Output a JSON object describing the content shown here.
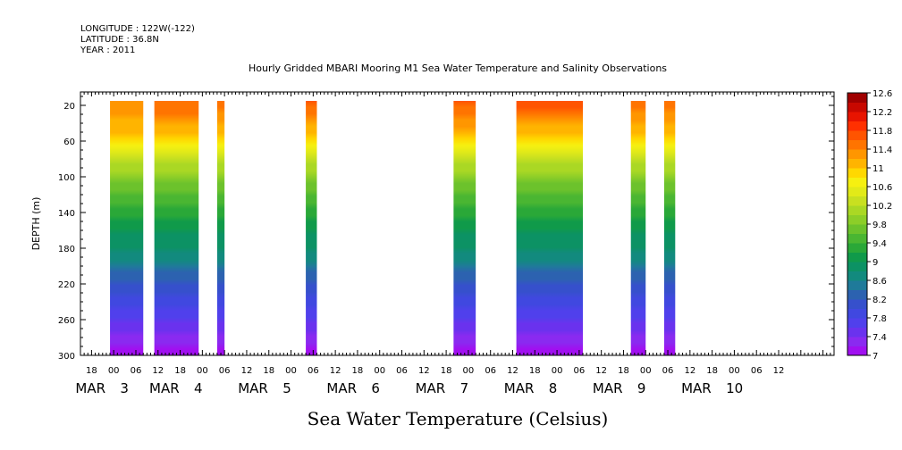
{
  "header": {
    "longitude": "LONGITUDE : 122W(-122)",
    "latitude": "LATITUDE : 36.8N",
    "year": "YEAR : 2011"
  },
  "chart_data": {
    "type": "heatmap",
    "title": "Hourly Gridded MBARI Mooring M1 Sea Water Temperature and Salinity Observations",
    "xlabel": "Sea Water Temperature (Celsius)",
    "ylabel": "DEPTH (m)",
    "xlim_hours": [
      -9,
      195
    ],
    "ylim": [
      300,
      5
    ],
    "y_ticks": [
      20,
      60,
      100,
      140,
      180,
      220,
      260,
      300
    ],
    "x_hour_ticks": [
      {
        "h": -6,
        "label": "18"
      },
      {
        "h": 0,
        "label": "00"
      },
      {
        "h": 6,
        "label": "06"
      },
      {
        "h": 12,
        "label": "12"
      },
      {
        "h": 18,
        "label": "18"
      },
      {
        "h": 24,
        "label": "00"
      },
      {
        "h": 30,
        "label": "06"
      },
      {
        "h": 36,
        "label": "12"
      },
      {
        "h": 42,
        "label": "18"
      },
      {
        "h": 48,
        "label": "00"
      },
      {
        "h": 54,
        "label": "06"
      },
      {
        "h": 60,
        "label": "12"
      },
      {
        "h": 66,
        "label": "18"
      },
      {
        "h": 72,
        "label": "00"
      },
      {
        "h": 78,
        "label": "06"
      },
      {
        "h": 84,
        "label": "12"
      },
      {
        "h": 90,
        "label": "18"
      },
      {
        "h": 96,
        "label": "00"
      },
      {
        "h": 102,
        "label": "06"
      },
      {
        "h": 108,
        "label": "12"
      },
      {
        "h": 114,
        "label": "18"
      },
      {
        "h": 120,
        "label": "00"
      },
      {
        "h": 126,
        "label": "06"
      },
      {
        "h": 132,
        "label": "12"
      },
      {
        "h": 138,
        "label": "18"
      },
      {
        "h": 144,
        "label": "00"
      },
      {
        "h": 150,
        "label": "06"
      },
      {
        "h": 156,
        "label": "12"
      },
      {
        "h": 162,
        "label": "18"
      },
      {
        "h": 168,
        "label": "00"
      },
      {
        "h": 174,
        "label": "06"
      },
      {
        "h": 180,
        "label": "12"
      }
    ],
    "day_labels": [
      {
        "h": -6,
        "month": "MAR",
        "day": "3"
      },
      {
        "h": 14,
        "month": "MAR",
        "day": "4"
      },
      {
        "h": 38,
        "month": "MAR",
        "day": "5"
      },
      {
        "h": 62,
        "month": "MAR",
        "day": "6"
      },
      {
        "h": 86,
        "month": "MAR",
        "day": "7"
      },
      {
        "h": 110,
        "month": "MAR",
        "day": "8"
      },
      {
        "h": 134,
        "month": "MAR",
        "day": "9"
      },
      {
        "h": 158,
        "month": "MAR",
        "day": "10"
      }
    ],
    "segments": [
      {
        "start": -1,
        "end": 8,
        "surface_temp": 11.2,
        "thermocline_depth": 55
      },
      {
        "start": 11,
        "end": 23,
        "surface_temp": 11.6,
        "thermocline_depth": 55
      },
      {
        "start": 28,
        "end": 30,
        "surface_temp": 11.6,
        "thermocline_depth": 50
      },
      {
        "start": 52,
        "end": 55,
        "surface_temp": 11.7,
        "thermocline_depth": 50
      },
      {
        "start": 92,
        "end": 98,
        "surface_temp": 11.7,
        "thermocline_depth": 55
      },
      {
        "start": 109,
        "end": 127,
        "surface_temp": 11.9,
        "thermocline_depth": 45
      },
      {
        "start": 140,
        "end": 144,
        "surface_temp": 11.6,
        "thermocline_depth": 45
      },
      {
        "start": 149,
        "end": 152,
        "surface_temp": 11.6,
        "thermocline_depth": 45
      }
    ],
    "temperature_profile": {
      "depths": [
        5,
        20,
        40,
        55,
        70,
        85,
        100,
        120,
        140,
        160,
        180,
        200,
        220,
        240,
        260,
        280,
        300
      ],
      "temps_below_thermocline": [
        11.4,
        11.4,
        11.2,
        11.0,
        10.6,
        10.2,
        9.9,
        9.6,
        9.3,
        9.0,
        8.8,
        8.5,
        8.2,
        7.9,
        7.6,
        7.3,
        7.1
      ]
    },
    "colorbar": {
      "levels": [
        7.0,
        7.2,
        7.4,
        7.6,
        7.8,
        8.0,
        8.2,
        8.4,
        8.6,
        8.8,
        9.0,
        9.2,
        9.4,
        9.6,
        9.8,
        10.0,
        10.2,
        10.4,
        10.6,
        10.8,
        11.0,
        11.2,
        11.4,
        11.6,
        11.8,
        12.0,
        12.2,
        12.4,
        12.6
      ],
      "tick_labels": [
        "7",
        "7.4",
        "7.8",
        "8.2",
        "8.6",
        "9",
        "9.4",
        "9.8",
        "10.2",
        "10.6",
        "11",
        "11.4",
        "11.8",
        "12.2",
        "12.6"
      ],
      "colors": [
        "#a010f0",
        "#8a2af0",
        "#6a32ee",
        "#5040ec",
        "#4048e0",
        "#3650cc",
        "#2c62b0",
        "#1f7a9a",
        "#128a7e",
        "#0c9264",
        "#109a4a",
        "#2aa838",
        "#4ab632",
        "#6cc22c",
        "#8cce28",
        "#aad824",
        "#c8e020",
        "#e2ea18",
        "#f6f010",
        "#ffd800",
        "#ffb400",
        "#ff9600",
        "#ff7400",
        "#ff5400",
        "#ff3000",
        "#e81400",
        "#c80800",
        "#a00000"
      ]
    }
  }
}
